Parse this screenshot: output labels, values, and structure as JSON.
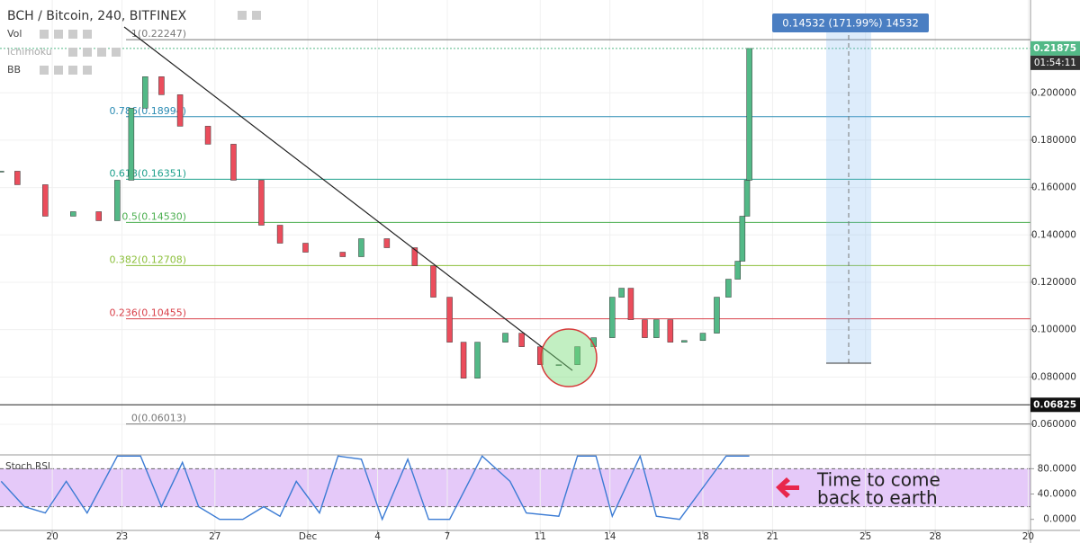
{
  "chart_data": {
    "type": "candlestick",
    "title": "BCH / Bitcoin, 240, BITFINEX",
    "indicators": [
      "Vol",
      "Ichimoku",
      "BB"
    ],
    "x": [
      -2.2,
      -1.5,
      -0.3,
      0.9,
      2.0,
      2.8,
      3.4,
      4.0,
      4.7,
      5.5,
      6.7,
      7.8,
      9.0,
      9.8,
      10.9,
      12.5,
      13.3,
      14.4,
      15.6,
      16.4,
      17.1,
      17.7,
      18.3,
      19.5,
      20.2,
      21.0,
      21.8,
      22.6,
      23.3,
      24.1,
      24.5,
      24.9,
      25.5,
      26.0,
      26.6,
      27.2,
      28.0,
      28.6,
      29.1,
      29.5,
      29.7,
      29.9,
      30.0
    ],
    "values": [
      0.1669,
      0.1612,
      0.1479,
      0.1498,
      0.146,
      0.1631,
      0.1935,
      0.2068,
      0.1992,
      0.1859,
      0.1783,
      0.1631,
      0.1441,
      0.1365,
      0.1327,
      0.1308,
      0.1384,
      0.1346,
      0.127,
      0.1137,
      0.0947,
      0.0795,
      0.0947,
      0.0985,
      0.0928,
      0.0852,
      0.0852,
      0.0928,
      0.0966,
      0.1137,
      0.1175,
      0.1042,
      0.0966,
      0.1042,
      0.0947,
      0.0954,
      0.0985,
      0.1137,
      0.1213,
      0.1289,
      0.1479,
      0.1631,
      0.21875
    ],
    "color_up": "#53b987",
    "color_down": "#eb4d5c",
    "xlim": [
      -2.25,
      42.1
    ],
    "xticks": [
      {
        "value": 0,
        "label": "20"
      },
      {
        "value": 3,
        "label": "23"
      },
      {
        "value": 7,
        "label": "27"
      },
      {
        "value": 11,
        "label": "Dec"
      },
      {
        "value": 14,
        "label": "4"
      },
      {
        "value": 17,
        "label": "7"
      },
      {
        "value": 21,
        "label": "11"
      },
      {
        "value": 24,
        "label": "14"
      },
      {
        "value": 28,
        "label": "18"
      },
      {
        "value": 31,
        "label": "21"
      },
      {
        "value": 35,
        "label": "25"
      },
      {
        "value": 38,
        "label": "28"
      },
      {
        "value": 42,
        "label": "20"
      }
    ],
    "ylim": [
      0.0471,
      0.2392
    ],
    "yticks": [
      {
        "value": 0.06,
        "label": "0.060000"
      },
      {
        "value": 0.08,
        "label": "0.080000"
      },
      {
        "value": 0.1,
        "label": "0.100000"
      },
      {
        "value": 0.12,
        "label": "0.120000"
      },
      {
        "value": 0.14,
        "label": "0.140000"
      },
      {
        "value": 0.16,
        "label": "0.160000"
      },
      {
        "value": 0.18,
        "label": "0.180000"
      },
      {
        "value": 0.2,
        "label": "0.200000"
      }
    ],
    "grid": true,
    "fib_levels": [
      {
        "value": 0.22247,
        "label": "1(0.22247)",
        "color": "#787878"
      },
      {
        "value": 0.18994,
        "label": "0.786(0.18994)",
        "color": "#2a8bb3"
      },
      {
        "value": 0.16351,
        "label": "0.618(0.16351)",
        "color": "#1ea08c"
      },
      {
        "value": 0.1453,
        "label": "0.5(0.14530)",
        "color": "#4caf50"
      },
      {
        "value": 0.12708,
        "label": "0.382(0.12708)",
        "color": "#8bbf3a"
      },
      {
        "value": 0.10455,
        "label": "0.236(0.10455)",
        "color": "#d9414a"
      },
      {
        "value": 0.06013,
        "label": "0(0.06013)",
        "color": "#787878"
      }
    ],
    "last_price": {
      "value": 0.21875,
      "label": "0.21875"
    },
    "countdown": "01:54:11",
    "ref_price": {
      "value": 0.06825,
      "label": "0.06825"
    },
    "measure_label": "0.14532 (171.99%) 14532",
    "annotation": [
      "Time to come",
      "back to earth"
    ],
    "oscillator": {
      "name": "Stoch RSI",
      "color": "#3b7bd4",
      "x": [
        -2.2,
        -1.2,
        -0.3,
        0.6,
        1.5,
        2.8,
        3.8,
        4.7,
        5.6,
        6.3,
        7.2,
        8.2,
        9.1,
        9.8,
        10.5,
        11.5,
        12.3,
        13.3,
        14.2,
        15.3,
        16.2,
        17.1,
        18.5,
        19.7,
        20.4,
        21.8,
        22.6,
        23.4,
        24.1,
        25.3,
        26.0,
        27.0,
        28.0,
        29.0,
        30.0
      ],
      "values": [
        60,
        20,
        10,
        60,
        10,
        100,
        100,
        20,
        90,
        20,
        0,
        0,
        20,
        5,
        60,
        10,
        100,
        95,
        0,
        95,
        0,
        0,
        100,
        60,
        10,
        5,
        100,
        100,
        5,
        100,
        5,
        0,
        50,
        100,
        100
      ],
      "ylim": [
        -17.5,
        100.4
      ],
      "yticks": [
        {
          "value": 0,
          "label": "0.0000"
        },
        {
          "value": 40,
          "label": "40.0000"
        },
        {
          "value": 80,
          "label": "80.0000"
        }
      ],
      "band": [
        20,
        80
      ]
    }
  }
}
